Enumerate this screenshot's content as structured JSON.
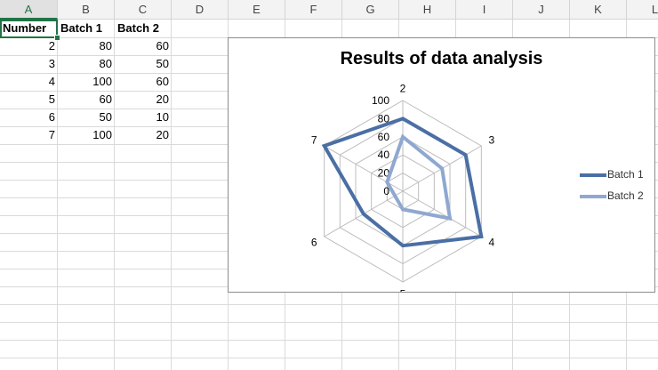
{
  "columns": [
    "A",
    "B",
    "C",
    "D",
    "E",
    "F",
    "G",
    "H",
    "I",
    "J",
    "K",
    "L"
  ],
  "table": {
    "headers": [
      "Number",
      "Batch 1",
      "Batch 2"
    ],
    "rows": [
      [
        "2",
        "80",
        "60"
      ],
      [
        "3",
        "80",
        "50"
      ],
      [
        "4",
        "100",
        "60"
      ],
      [
        "5",
        "60",
        "20"
      ],
      [
        "6",
        "50",
        "10"
      ],
      [
        "7",
        "100",
        "20"
      ]
    ]
  },
  "chart": {
    "title": "Results of data analysis"
  },
  "chart_data": {
    "type": "radar",
    "title": "Results of data analysis",
    "categories": [
      "2",
      "3",
      "4",
      "5",
      "6",
      "7"
    ],
    "series": [
      {
        "name": "Batch 1",
        "values": [
          80,
          80,
          100,
          60,
          50,
          100
        ],
        "color": "#4a6fa5"
      },
      {
        "name": "Batch 2",
        "values": [
          60,
          50,
          60,
          20,
          10,
          20
        ],
        "color": "#8fa8d0"
      }
    ],
    "rlim": [
      0,
      100
    ],
    "ticks": [
      "0",
      "20",
      "40",
      "60",
      "80",
      "100"
    ],
    "grid": true,
    "legend": "right"
  }
}
